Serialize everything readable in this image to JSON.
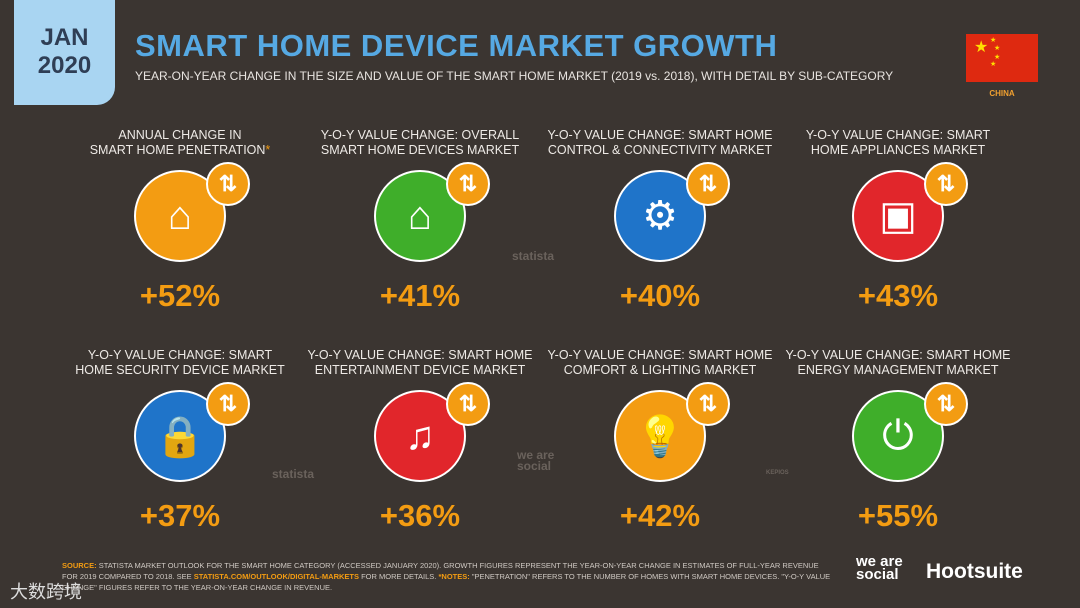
{
  "header": {
    "month": "JAN",
    "year": "2020",
    "title": "SMART HOME DEVICE MARKET GROWTH",
    "subtitle": "YEAR-ON-YEAR CHANGE IN THE SIZE AND VALUE OF THE SMART HOME MARKET (2019 vs. 2018), WITH DETAIL BY SUB-CATEGORY",
    "country": "CHINA"
  },
  "colors": {
    "orange": "#f39c12",
    "green": "#3fae2a",
    "blue": "#1f74c9",
    "red": "#e1262b",
    "title_blue": "#56a9e3"
  },
  "cards": [
    {
      "l1": "ANNUAL CHANGE IN",
      "l2": "SMART HOME PENETRATION",
      "ast": "*",
      "value": "+52%",
      "color": "#f39c12",
      "icon": "smart-home-wifi-icon",
      "glyph": "⌂"
    },
    {
      "l1": "Y-O-Y VALUE CHANGE: OVERALL",
      "l2": "SMART HOME DEVICES MARKET",
      "ast": "",
      "value": "+41%",
      "color": "#3fae2a",
      "icon": "smart-home-wifi-icon",
      "glyph": "⌂"
    },
    {
      "l1": "Y-O-Y VALUE CHANGE: SMART HOME",
      "l2": "CONTROL & CONNECTIVITY MARKET",
      "ast": "",
      "value": "+40%",
      "color": "#1f74c9",
      "icon": "gear-icon",
      "glyph": "⚙"
    },
    {
      "l1": "Y-O-Y VALUE CHANGE: SMART",
      "l2": "HOME APPLIANCES MARKET",
      "ast": "",
      "value": "+43%",
      "color": "#e1262b",
      "icon": "washing-machine-icon",
      "glyph": "▣"
    },
    {
      "l1": "Y-O-Y VALUE CHANGE: SMART",
      "l2": "HOME SECURITY DEVICE MARKET",
      "ast": "",
      "value": "+37%",
      "color": "#1f74c9",
      "icon": "padlock-icon",
      "glyph": "🔒"
    },
    {
      "l1": "Y-O-Y VALUE CHANGE: SMART HOME",
      "l2": "ENTERTAINMENT DEVICE MARKET",
      "ast": "",
      "value": "+36%",
      "color": "#e1262b",
      "icon": "speaker-music-icon",
      "glyph": "♫"
    },
    {
      "l1": "Y-O-Y VALUE CHANGE: SMART HOME",
      "l2": "COMFORT & LIGHTING MARKET",
      "ast": "",
      "value": "+42%",
      "color": "#f39c12",
      "icon": "light-bulb-icon",
      "glyph": "💡"
    },
    {
      "l1": "Y-O-Y VALUE CHANGE: SMART HOME",
      "l2": "ENERGY MANAGEMENT MARKET",
      "ast": "",
      "value": "+55%",
      "color": "#3fae2a",
      "icon": "plug-icon",
      "glyph": "⏻"
    }
  ],
  "badge_glyph": "⇅",
  "watermarks": {
    "statista": "statista",
    "wearesocial": "we are social",
    "kepios": "KEPIOS"
  },
  "footer": {
    "source_label": "SOURCE:",
    "source": "STATISTA MARKET OUTLOOK FOR THE SMART HOME CATEGORY (ACCESSED JANUARY 2020). GROWTH FIGURES REPRESENT THE YEAR-ON-YEAR CHANGE IN ESTIMATES OF FULL-YEAR REVENUE FOR 2019 COMPARED TO 2018. SEE",
    "link": "STATISTA.COM/OUTLOOK/DIGITAL-MARKETS",
    "after_link": "FOR MORE DETAILS.",
    "notes_label": "*NOTES:",
    "notes": "\"PENETRATION\" REFERS TO THE NUMBER OF HOMES WITH SMART HOME DEVICES. \"Y-O-Y VALUE CHANGE\" FIGURES REFER TO THE YEAR-ON-YEAR CHANGE IN REVENUE.",
    "logo1": "we are social",
    "logo2": "Hootsuite",
    "overlay": "大数跨境"
  }
}
